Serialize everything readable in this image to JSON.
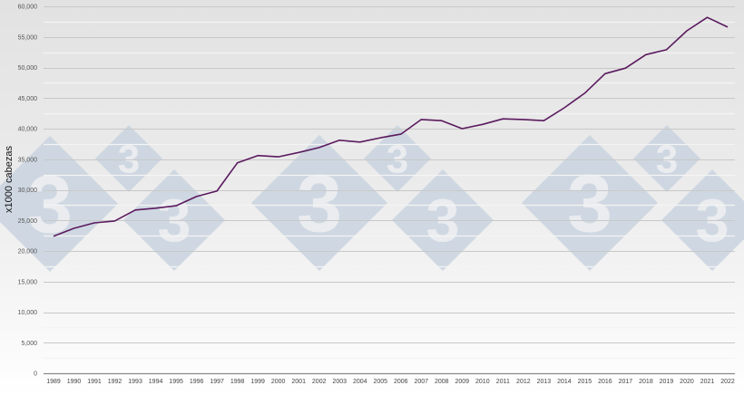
{
  "chart_data": {
    "type": "line",
    "title": "",
    "xlabel": "",
    "ylabel": "x1000 cabezas",
    "ylim": [
      0,
      60000
    ],
    "yticks": [
      0,
      5000,
      10000,
      15000,
      20000,
      25000,
      30000,
      35000,
      40000,
      45000,
      50000,
      55000,
      60000
    ],
    "ytick_labels": [
      "0",
      "5,000",
      "10,000",
      "15,000",
      "20,000",
      "25,000",
      "30,000",
      "35,000",
      "40,000",
      "45,000",
      "50,000",
      "55,000",
      "60,000"
    ],
    "grid": true,
    "legend": "none",
    "categories": [
      "1989",
      "1990",
      "1991",
      "1992",
      "1993",
      "1994",
      "1995",
      "1996",
      "1997",
      "1998",
      "1999",
      "2000",
      "2001",
      "2002",
      "2003",
      "2004",
      "2005",
      "2006",
      "2007",
      "2008",
      "2009",
      "2010",
      "2011",
      "2012",
      "2013",
      "2014",
      "2015",
      "2016",
      "2017",
      "2018",
      "2019",
      "2020",
      "2021",
      "2022"
    ],
    "series": [
      {
        "name": "x1000 cabezas",
        "color": "#5a1a5e",
        "values": [
          22400,
          23700,
          24600,
          24900,
          26700,
          27000,
          27400,
          28900,
          29800,
          34400,
          35600,
          35400,
          36100,
          36900,
          38100,
          37800,
          38500,
          39100,
          41500,
          41300,
          40000,
          40700,
          41600,
          41500,
          41300,
          43400,
          45800,
          49000,
          49900,
          52100,
          52900,
          56000,
          58200,
          56600
        ]
      }
    ]
  },
  "watermark": {
    "glyph": "3",
    "color": "#c9d3df"
  }
}
